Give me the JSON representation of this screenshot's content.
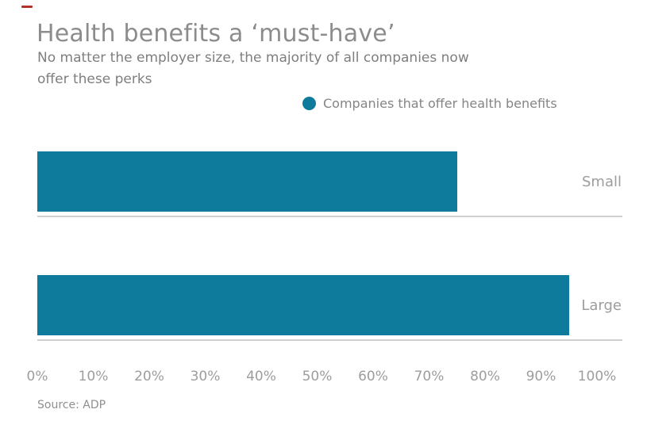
{
  "corner_mark": {
    "color": "#b23128"
  },
  "header": {
    "title": "Health benefits a ‘must-have’",
    "subtitle_lines": [
      "No matter the employer size, the majority of all companies now",
      "offer these perks"
    ]
  },
  "legend": {
    "label": "Companies that offer health benefits",
    "marker_color": "#0e7b9c"
  },
  "chart_data": {
    "type": "bar",
    "orientation": "horizontal",
    "title": "Health benefits a ‘must-have’",
    "subtitle": "No matter the employer size, the majority of all companies now offer these perks",
    "categories": [
      "Small",
      "Large"
    ],
    "values": [
      75,
      95
    ],
    "series_label": "Companies that offer health benefits",
    "xlabel": "",
    "ylabel": "",
    "xlim": [
      0,
      100
    ],
    "x_tick_labels": [
      "0%",
      "10%",
      "20%",
      "30%",
      "40%",
      "50%",
      "60%",
      "70%",
      "80%",
      "90%",
      "100%"
    ],
    "bar_color": "#0e7b9c",
    "grid": "light horizontal separator line under each bar row only",
    "legend_position": "top-right",
    "source": "Source: ADP"
  },
  "footer": {
    "source": "Source: ADP"
  }
}
